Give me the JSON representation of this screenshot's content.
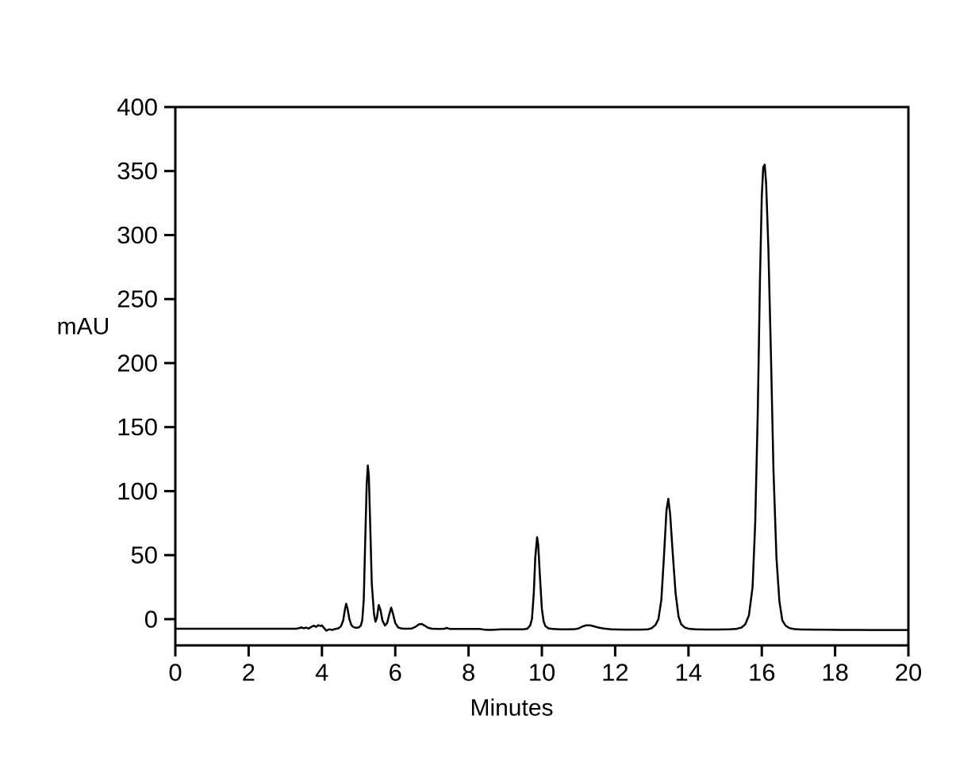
{
  "figure": {
    "background": "#ffffff",
    "line_color": "#000000"
  },
  "chart_data": {
    "type": "line",
    "title": "",
    "xlabel": "Minutes",
    "ylabel": "mAU",
    "xlim": [
      0,
      20
    ],
    "ylim": [
      -20.5,
      400
    ],
    "x_ticks": [
      0,
      2,
      4,
      6,
      8,
      10,
      12,
      14,
      16,
      18,
      20
    ],
    "y_ticks": [
      0,
      50,
      100,
      150,
      200,
      250,
      300,
      350,
      400
    ],
    "grid": false,
    "legend": null,
    "frame": "full-box",
    "baseline_mAU": -7.5,
    "peaks": [
      {
        "retention_time_min": 4.65,
        "apex_mAU": 12
      },
      {
        "retention_time_min": 5.25,
        "apex_mAU": 120
      },
      {
        "retention_time_min": 5.55,
        "apex_mAU": 11
      },
      {
        "retention_time_min": 5.9,
        "apex_mAU": 9
      },
      {
        "retention_time_min": 6.7,
        "apex_mAU": -3.5
      },
      {
        "retention_time_min": 9.87,
        "apex_mAU": 64
      },
      {
        "retention_time_min": 11.3,
        "apex_mAU": -4.9
      },
      {
        "retention_time_min": 13.45,
        "apex_mAU": 94
      },
      {
        "retention_time_min": 16.08,
        "apex_mAU": 355
      }
    ],
    "series": [
      {
        "name": "detector-signal",
        "color": "#000000",
        "points": [
          [
            0,
            -7.5
          ],
          [
            0.5,
            -7.5
          ],
          [
            1,
            -7.5
          ],
          [
            1.5,
            -7.5
          ],
          [
            2,
            -7.5
          ],
          [
            2.5,
            -7.5
          ],
          [
            3,
            -7.5
          ],
          [
            3.2,
            -7.5
          ],
          [
            3.3,
            -7.5
          ],
          [
            3.38,
            -7
          ],
          [
            3.44,
            -6.4
          ],
          [
            3.5,
            -7.2
          ],
          [
            3.56,
            -6.6
          ],
          [
            3.64,
            -7.3
          ],
          [
            3.72,
            -5.9
          ],
          [
            3.78,
            -5.1
          ],
          [
            3.84,
            -6
          ],
          [
            3.9,
            -4.7
          ],
          [
            3.96,
            -5.4
          ],
          [
            4,
            -4.9
          ],
          [
            4.06,
            -7
          ],
          [
            4.12,
            -9
          ],
          [
            4.2,
            -7.9
          ],
          [
            4.28,
            -8.4
          ],
          [
            4.36,
            -7.7
          ],
          [
            4.45,
            -7.2
          ],
          [
            4.52,
            -5.5
          ],
          [
            4.58,
            -1
          ],
          [
            4.63,
            8
          ],
          [
            4.66,
            12
          ],
          [
            4.7,
            8
          ],
          [
            4.75,
            0
          ],
          [
            4.8,
            -4.5
          ],
          [
            4.85,
            -6
          ],
          [
            4.92,
            -6.8
          ],
          [
            5,
            -6.5
          ],
          [
            5.06,
            -5
          ],
          [
            5.1,
            -1
          ],
          [
            5.14,
            15
          ],
          [
            5.18,
            60
          ],
          [
            5.22,
            105
          ],
          [
            5.25,
            120
          ],
          [
            5.28,
            112
          ],
          [
            5.32,
            70
          ],
          [
            5.36,
            28
          ],
          [
            5.42,
            4
          ],
          [
            5.46,
            -2
          ],
          [
            5.5,
            1
          ],
          [
            5.55,
            11
          ],
          [
            5.6,
            7
          ],
          [
            5.65,
            -1
          ],
          [
            5.72,
            -5
          ],
          [
            5.78,
            -3
          ],
          [
            5.84,
            4
          ],
          [
            5.89,
            9
          ],
          [
            5.94,
            4
          ],
          [
            6,
            -3
          ],
          [
            6.08,
            -6.5
          ],
          [
            6.18,
            -7.4
          ],
          [
            6.3,
            -7.5
          ],
          [
            6.45,
            -7.3
          ],
          [
            6.55,
            -6
          ],
          [
            6.65,
            -4
          ],
          [
            6.72,
            -3.8
          ],
          [
            6.8,
            -5
          ],
          [
            6.9,
            -6.8
          ],
          [
            7,
            -7.5
          ],
          [
            7.2,
            -7.6
          ],
          [
            7.35,
            -7.5
          ],
          [
            7.4,
            -6.8
          ],
          [
            7.48,
            -7.6
          ],
          [
            7.7,
            -7.6
          ],
          [
            8,
            -7.6
          ],
          [
            8.3,
            -7.6
          ],
          [
            8.45,
            -8.3
          ],
          [
            8.6,
            -8.4
          ],
          [
            8.75,
            -8.2
          ],
          [
            8.9,
            -7.9
          ],
          [
            9.1,
            -7.9
          ],
          [
            9.3,
            -7.9
          ],
          [
            9.5,
            -7.9
          ],
          [
            9.6,
            -7.5
          ],
          [
            9.68,
            -5
          ],
          [
            9.73,
            0
          ],
          [
            9.78,
            20
          ],
          [
            9.82,
            48
          ],
          [
            9.87,
            64
          ],
          [
            9.9,
            58
          ],
          [
            9.95,
            32
          ],
          [
            10,
            8
          ],
          [
            10.05,
            -2
          ],
          [
            10.1,
            -5.5
          ],
          [
            10.18,
            -7.2
          ],
          [
            10.3,
            -7.7
          ],
          [
            10.5,
            -7.9
          ],
          [
            10.7,
            -7.9
          ],
          [
            10.9,
            -7.8
          ],
          [
            11,
            -7.3
          ],
          [
            11.1,
            -5.8
          ],
          [
            11.2,
            -4.9
          ],
          [
            11.32,
            -4.9
          ],
          [
            11.42,
            -5.6
          ],
          [
            11.55,
            -6.6
          ],
          [
            11.7,
            -7.4
          ],
          [
            11.9,
            -7.9
          ],
          [
            12.1,
            -8.1
          ],
          [
            12.3,
            -8.2
          ],
          [
            12.5,
            -8.2
          ],
          [
            12.7,
            -8.2
          ],
          [
            12.9,
            -7.9
          ],
          [
            13,
            -7
          ],
          [
            13.1,
            -4.5
          ],
          [
            13.18,
            0
          ],
          [
            13.26,
            15
          ],
          [
            13.33,
            48
          ],
          [
            13.4,
            85
          ],
          [
            13.45,
            94
          ],
          [
            13.5,
            82
          ],
          [
            13.57,
            52
          ],
          [
            13.65,
            20
          ],
          [
            13.73,
            2
          ],
          [
            13.8,
            -4
          ],
          [
            13.9,
            -6.5
          ],
          [
            14,
            -7.5
          ],
          [
            14.2,
            -8
          ],
          [
            14.5,
            -8.1
          ],
          [
            14.8,
            -8.1
          ],
          [
            15.1,
            -8
          ],
          [
            15.3,
            -7.7
          ],
          [
            15.45,
            -6.5
          ],
          [
            15.55,
            -4
          ],
          [
            15.65,
            3
          ],
          [
            15.75,
            25
          ],
          [
            15.82,
            75
          ],
          [
            15.89,
            160
          ],
          [
            15.95,
            265
          ],
          [
            16,
            330
          ],
          [
            16.04,
            353
          ],
          [
            16.08,
            355
          ],
          [
            16.12,
            340
          ],
          [
            16.18,
            290
          ],
          [
            16.25,
            205
          ],
          [
            16.32,
            115
          ],
          [
            16.4,
            48
          ],
          [
            16.48,
            14
          ],
          [
            16.56,
            -1
          ],
          [
            16.65,
            -5
          ],
          [
            16.75,
            -7
          ],
          [
            16.9,
            -7.8
          ],
          [
            17.1,
            -8.1
          ],
          [
            17.4,
            -8.2
          ],
          [
            17.8,
            -8.3
          ],
          [
            18.2,
            -8.4
          ],
          [
            18.6,
            -8.4
          ],
          [
            19,
            -8.5
          ],
          [
            19.5,
            -8.5
          ],
          [
            20,
            -8.5
          ]
        ]
      }
    ]
  }
}
